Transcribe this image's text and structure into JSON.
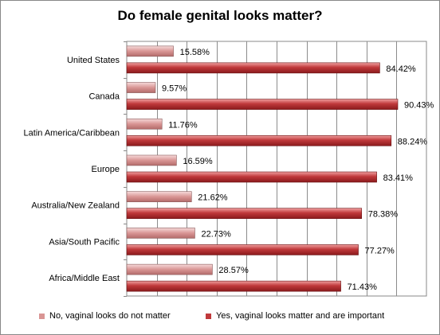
{
  "chart_data": {
    "type": "bar",
    "orientation": "horizontal",
    "title": "Do female genital looks matter?",
    "xlim": [
      0,
      100
    ],
    "grid": true,
    "legend_position": "bottom",
    "categories": [
      "United States",
      "Canada",
      "Latin America/Caribbean",
      "Europe",
      "Australia/New Zealand",
      "Asia/South Pacific",
      "Africa/Middle East"
    ],
    "series": [
      {
        "name": "No, vaginal looks do not matter",
        "color": "#d99594",
        "values": [
          15.58,
          9.57,
          11.76,
          16.59,
          21.62,
          22.73,
          28.57
        ],
        "labels": [
          "15.58%",
          "9.57%",
          "11.76%",
          "16.59%",
          "21.62%",
          "22.73%",
          "28.57%"
        ]
      },
      {
        "name": "Yes, vaginal looks matter  and are important",
        "color": "#c0393b",
        "values": [
          84.42,
          90.43,
          88.24,
          83.41,
          78.38,
          77.27,
          71.43
        ],
        "labels": [
          "84.42%",
          "90.43%",
          "88.24%",
          "83.41%",
          "78.38%",
          "77.27%",
          "71.43%"
        ]
      }
    ]
  }
}
